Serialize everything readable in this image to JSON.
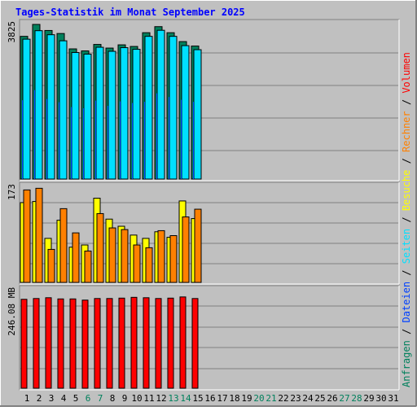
{
  "title": "Tages-Statistik im Monat September 2025",
  "colors": {
    "background": "#c0c0c0",
    "gridline": "#808080",
    "title": "#0000ff",
    "anfragen": "#00805c",
    "dateien": "#0040ff",
    "seiten": "#00e0ff",
    "besuche": "#ffff00",
    "rechner": "#ff8000",
    "volumen": "#ff0000",
    "weekend_day": "#00805c"
  },
  "legend": {
    "right_top": [
      {
        "label": "Anfragen",
        "color": "#00805c"
      },
      {
        "label": " / ",
        "color": "#000000"
      },
      {
        "label": "Dateien",
        "color": "#0040ff"
      },
      {
        "label": " / ",
        "color": "#000000"
      },
      {
        "label": "Seiten",
        "color": "#00e0ff"
      },
      {
        "label": " / ",
        "color": "#000000"
      },
      {
        "label": "Besuche",
        "color": "#ffff00"
      },
      {
        "label": " / ",
        "color": "#000000"
      },
      {
        "label": "Rechner",
        "color": "#ff8000"
      },
      {
        "label": " / ",
        "color": "#000000"
      },
      {
        "label": "Volumen",
        "color": "#ff0000"
      }
    ]
  },
  "chart_data": [
    {
      "type": "bar",
      "name": "requests-panel",
      "max_label": "3825",
      "ylim": [
        0,
        3825
      ],
      "x": [
        1,
        2,
        3,
        4,
        5,
        6,
        7,
        8,
        9,
        10,
        11,
        12,
        13,
        14,
        15
      ],
      "series": [
        {
          "name": "Anfragen",
          "values": [
            3530,
            3825,
            3675,
            3600,
            3220,
            3170,
            3330,
            3240,
            3320,
            3280,
            3620,
            3770,
            3620,
            3400,
            3290
          ]
        },
        {
          "name": "Dateien",
          "values": [
            1950,
            2200,
            1980,
            1900,
            1780,
            1750,
            1940,
            1810,
            1920,
            1880,
            1910,
            2120,
            2030,
            1960,
            1910
          ]
        },
        {
          "name": "Seiten",
          "values": [
            3460,
            3670,
            3570,
            3420,
            3130,
            3090,
            3260,
            3160,
            3250,
            3210,
            3530,
            3680,
            3530,
            3300,
            3200
          ]
        }
      ]
    },
    {
      "type": "bar",
      "name": "visits-panel",
      "max_label": "173",
      "ylim": [
        0,
        173
      ],
      "x": [
        1,
        2,
        3,
        4,
        5,
        6,
        7,
        8,
        9,
        10,
        11,
        12,
        13,
        14,
        15
      ],
      "series": [
        {
          "name": "Besuche",
          "values": [
            145,
            147,
            80,
            113,
            64,
            68,
            153,
            115,
            102,
            86,
            80,
            92,
            82,
            148,
            116
          ]
        },
        {
          "name": "Rechner",
          "values": [
            168,
            171,
            60,
            134,
            90,
            57,
            125,
            99,
            96,
            68,
            63,
            94,
            85,
            119,
            133
          ]
        }
      ]
    },
    {
      "type": "bar",
      "name": "volume-panel",
      "max_label": "246.08 MB",
      "ylim": [
        0,
        246.08
      ],
      "x": [
        1,
        2,
        3,
        4,
        5,
        6,
        7,
        8,
        9,
        10,
        11,
        12,
        13,
        14,
        15
      ],
      "series": [
        {
          "name": "Volumen",
          "values": [
            224,
            226,
            228,
            225,
            225,
            222,
            226,
            226,
            227,
            229,
            228,
            226,
            227,
            230,
            226
          ]
        }
      ]
    }
  ],
  "x_axis": {
    "days": [
      {
        "label": "1",
        "weekend": false
      },
      {
        "label": "2",
        "weekend": false
      },
      {
        "label": "3",
        "weekend": false
      },
      {
        "label": "4",
        "weekend": false
      },
      {
        "label": "5",
        "weekend": false
      },
      {
        "label": "6",
        "weekend": true
      },
      {
        "label": "7",
        "weekend": true
      },
      {
        "label": "8",
        "weekend": false
      },
      {
        "label": "9",
        "weekend": false
      },
      {
        "label": "10",
        "weekend": false
      },
      {
        "label": "11",
        "weekend": false
      },
      {
        "label": "12",
        "weekend": false
      },
      {
        "label": "13",
        "weekend": true
      },
      {
        "label": "14",
        "weekend": true
      },
      {
        "label": "15",
        "weekend": false
      },
      {
        "label": "16",
        "weekend": false
      },
      {
        "label": "17",
        "weekend": false
      },
      {
        "label": "18",
        "weekend": false
      },
      {
        "label": "19",
        "weekend": false
      },
      {
        "label": "20",
        "weekend": true
      },
      {
        "label": "21",
        "weekend": true
      },
      {
        "label": "22",
        "weekend": false
      },
      {
        "label": "23",
        "weekend": false
      },
      {
        "label": "24",
        "weekend": false
      },
      {
        "label": "25",
        "weekend": false
      },
      {
        "label": "26",
        "weekend": false
      },
      {
        "label": "27",
        "weekend": true
      },
      {
        "label": "28",
        "weekend": true
      },
      {
        "label": "29",
        "weekend": false
      },
      {
        "label": "30",
        "weekend": false
      },
      {
        "label": "31",
        "weekend": false
      }
    ]
  }
}
